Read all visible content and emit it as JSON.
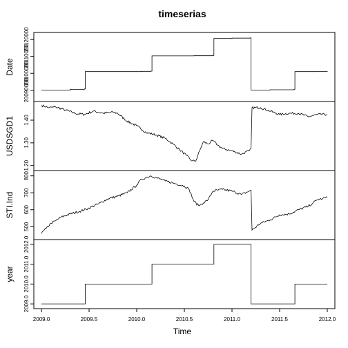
{
  "chart_data": {
    "type": "line",
    "title": "timeserias",
    "xlabel": "Time",
    "x_ticks": [
      2009.0,
      2009.5,
      2010.0,
      2010.5,
      2011.0,
      2011.5,
      2012.0
    ],
    "x_tick_labels": [
      "2009.0",
      "2009.5",
      "2010.0",
      "2010.5",
      "2011.0",
      "2011.5",
      "2012.0"
    ],
    "xlim": [
      2008.92,
      2012.08
    ],
    "panels": [
      {
        "ylabel": "Date",
        "y_ticks": [
          20090000,
          20100000,
          20110000,
          20120000
        ],
        "y_tick_labels": [
          "20090000",
          "20100000",
          "20110000",
          "20120000"
        ],
        "ylim": [
          20085000,
          20122500
        ],
        "kind": "step",
        "points": [
          [
            2009.0,
            20090100
          ],
          [
            2009.3,
            20090500
          ],
          [
            2009.45,
            20090800
          ],
          [
            2009.46,
            20101000
          ],
          [
            2010.05,
            20101200
          ],
          [
            2010.15,
            20101300
          ],
          [
            2010.16,
            20110300
          ],
          [
            2010.6,
            20110400
          ],
          [
            2010.8,
            20110600
          ],
          [
            2010.81,
            20120600
          ],
          [
            2011.0,
            20120800
          ],
          [
            2011.19,
            20120900
          ],
          [
            2011.2,
            20090100
          ],
          [
            2011.4,
            20090300
          ],
          [
            2011.65,
            20090600
          ],
          [
            2011.66,
            20101000
          ],
          [
            2011.9,
            20101100
          ],
          [
            2012.0,
            20101300
          ]
        ]
      },
      {
        "ylabel": "USDSGD1",
        "y_ticks": [
          1.2,
          1.3,
          1.4
        ],
        "y_tick_labels": [
          "1.20",
          "1.30",
          "1.40"
        ],
        "ylim": [
          1.19,
          1.47
        ],
        "kind": "noisy",
        "points": [
          [
            2009.0,
            1.465
          ],
          [
            2009.08,
            1.455
          ],
          [
            2009.15,
            1.458
          ],
          [
            2009.25,
            1.445
          ],
          [
            2009.35,
            1.43
          ],
          [
            2009.45,
            1.425
          ],
          [
            2009.55,
            1.44
          ],
          [
            2009.65,
            1.43
          ],
          [
            2009.75,
            1.435
          ],
          [
            2009.8,
            1.43
          ],
          [
            2009.9,
            1.395
          ],
          [
            2010.0,
            1.375
          ],
          [
            2010.1,
            1.345
          ],
          [
            2010.2,
            1.335
          ],
          [
            2010.3,
            1.32
          ],
          [
            2010.38,
            1.295
          ],
          [
            2010.45,
            1.27
          ],
          [
            2010.52,
            1.245
          ],
          [
            2010.58,
            1.22
          ],
          [
            2010.62,
            1.22
          ],
          [
            2010.66,
            1.265
          ],
          [
            2010.7,
            1.305
          ],
          [
            2010.75,
            1.295
          ],
          [
            2010.8,
            1.31
          ],
          [
            2010.85,
            1.29
          ],
          [
            2010.9,
            1.275
          ],
          [
            2011.0,
            1.265
          ],
          [
            2011.1,
            1.25
          ],
          [
            2011.18,
            1.265
          ],
          [
            2011.2,
            1.275
          ],
          [
            2011.21,
            1.455
          ],
          [
            2011.3,
            1.455
          ],
          [
            2011.4,
            1.44
          ],
          [
            2011.5,
            1.425
          ],
          [
            2011.6,
            1.43
          ],
          [
            2011.7,
            1.43
          ],
          [
            2011.8,
            1.415
          ],
          [
            2011.9,
            1.425
          ],
          [
            2012.0,
            1.425
          ]
        ]
      },
      {
        "ylabel": "STI.Ind",
        "y_ticks": [
          500,
          600,
          700,
          800
        ],
        "y_tick_labels": [
          "500",
          "600",
          "700",
          "800"
        ],
        "ylim": [
          440,
          815
        ],
        "kind": "noisy",
        "points": [
          [
            2009.0,
            460
          ],
          [
            2009.05,
            490
          ],
          [
            2009.1,
            520
          ],
          [
            2009.15,
            535
          ],
          [
            2009.2,
            555
          ],
          [
            2009.3,
            575
          ],
          [
            2009.4,
            590
          ],
          [
            2009.5,
            610
          ],
          [
            2009.6,
            635
          ],
          [
            2009.7,
            665
          ],
          [
            2009.8,
            680
          ],
          [
            2009.9,
            700
          ],
          [
            2010.0,
            745
          ],
          [
            2010.05,
            780
          ],
          [
            2010.1,
            790
          ],
          [
            2010.15,
            800
          ],
          [
            2010.2,
            790
          ],
          [
            2010.3,
            770
          ],
          [
            2010.4,
            755
          ],
          [
            2010.5,
            740
          ],
          [
            2010.55,
            720
          ],
          [
            2010.6,
            650
          ],
          [
            2010.65,
            625
          ],
          [
            2010.7,
            640
          ],
          [
            2010.75,
            660
          ],
          [
            2010.8,
            710
          ],
          [
            2010.9,
            720
          ],
          [
            2011.0,
            710
          ],
          [
            2011.1,
            690
          ],
          [
            2011.18,
            710
          ],
          [
            2011.2,
            715
          ],
          [
            2011.21,
            480
          ],
          [
            2011.3,
            520
          ],
          [
            2011.4,
            540
          ],
          [
            2011.5,
            570
          ],
          [
            2011.6,
            575
          ],
          [
            2011.7,
            600
          ],
          [
            2011.8,
            620
          ],
          [
            2011.85,
            640
          ],
          [
            2011.9,
            660
          ],
          [
            2011.95,
            665
          ],
          [
            2012.0,
            672
          ]
        ]
      },
      {
        "ylabel": "year",
        "y_ticks": [
          2009.0,
          2010.0,
          2011.0,
          2012.0
        ],
        "y_tick_labels": [
          "2009.0",
          "2010.0",
          "2011.0",
          "2012.0"
        ],
        "ylim": [
          2008.9,
          2012.1
        ],
        "kind": "step",
        "points": [
          [
            2009.0,
            2009
          ],
          [
            2009.46,
            2009
          ],
          [
            2009.46,
            2010
          ],
          [
            2010.16,
            2010
          ],
          [
            2010.16,
            2011
          ],
          [
            2010.81,
            2011
          ],
          [
            2010.81,
            2012
          ],
          [
            2011.2,
            2012
          ],
          [
            2011.2,
            2009
          ],
          [
            2011.66,
            2009
          ],
          [
            2011.66,
            2010
          ],
          [
            2012.0,
            2010
          ]
        ]
      }
    ]
  }
}
